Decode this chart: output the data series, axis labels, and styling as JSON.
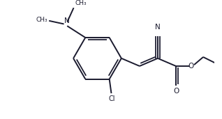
{
  "background_color": "#ffffff",
  "line_color": "#1a1a2e",
  "line_width": 1.4,
  "figsize": [
    3.18,
    1.71
  ],
  "dpi": 100,
  "xlim": [
    0,
    318
  ],
  "ylim": [
    0,
    171
  ]
}
